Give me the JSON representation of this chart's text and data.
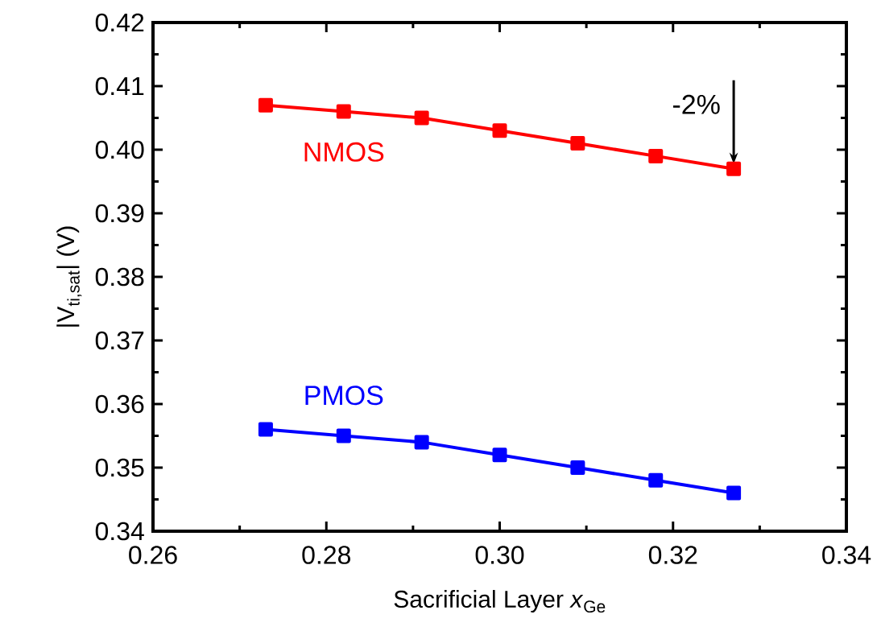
{
  "chart_data": {
    "type": "line",
    "xlabel": "Sacrificial Layer *x*$_{Ge}$",
    "ylabel": "|V$_{ti,sat}$| (V)",
    "x": [
      0.273,
      0.282,
      0.291,
      0.3,
      0.309,
      0.318,
      0.327
    ],
    "series": [
      {
        "name": "NMOS",
        "color": "#ff0000",
        "values": [
          0.407,
          0.406,
          0.405,
          0.403,
          0.401,
          0.399,
          0.397
        ]
      },
      {
        "name": "PMOS",
        "color": "#0000ff",
        "values": [
          0.356,
          0.355,
          0.354,
          0.352,
          0.35,
          0.348,
          0.346
        ]
      }
    ],
    "xlim": [
      0.26,
      0.34
    ],
    "ylim": [
      0.34,
      0.42
    ],
    "xticks": [
      {
        "value": 0.26,
        "label": "0.26"
      },
      {
        "value": 0.28,
        "label": "0.28"
      },
      {
        "value": 0.3,
        "label": "0.30"
      },
      {
        "value": 0.32,
        "label": "0.32"
      },
      {
        "value": 0.34,
        "label": "0.34"
      }
    ],
    "yticks": [
      {
        "value": 0.34,
        "label": "0.34"
      },
      {
        "value": 0.35,
        "label": "0.35"
      },
      {
        "value": 0.36,
        "label": "0.36"
      },
      {
        "value": 0.37,
        "label": "0.37"
      },
      {
        "value": 0.38,
        "label": "0.38"
      },
      {
        "value": 0.39,
        "label": "0.39"
      },
      {
        "value": 0.4,
        "label": "0.40"
      },
      {
        "value": 0.41,
        "label": "0.41"
      },
      {
        "value": 0.42,
        "label": "0.42"
      }
    ],
    "annotations": [
      {
        "text": "-2%",
        "x": 0.327,
        "y": 0.397
      }
    ],
    "marker": "square",
    "line_style": "solid",
    "grid": false
  }
}
